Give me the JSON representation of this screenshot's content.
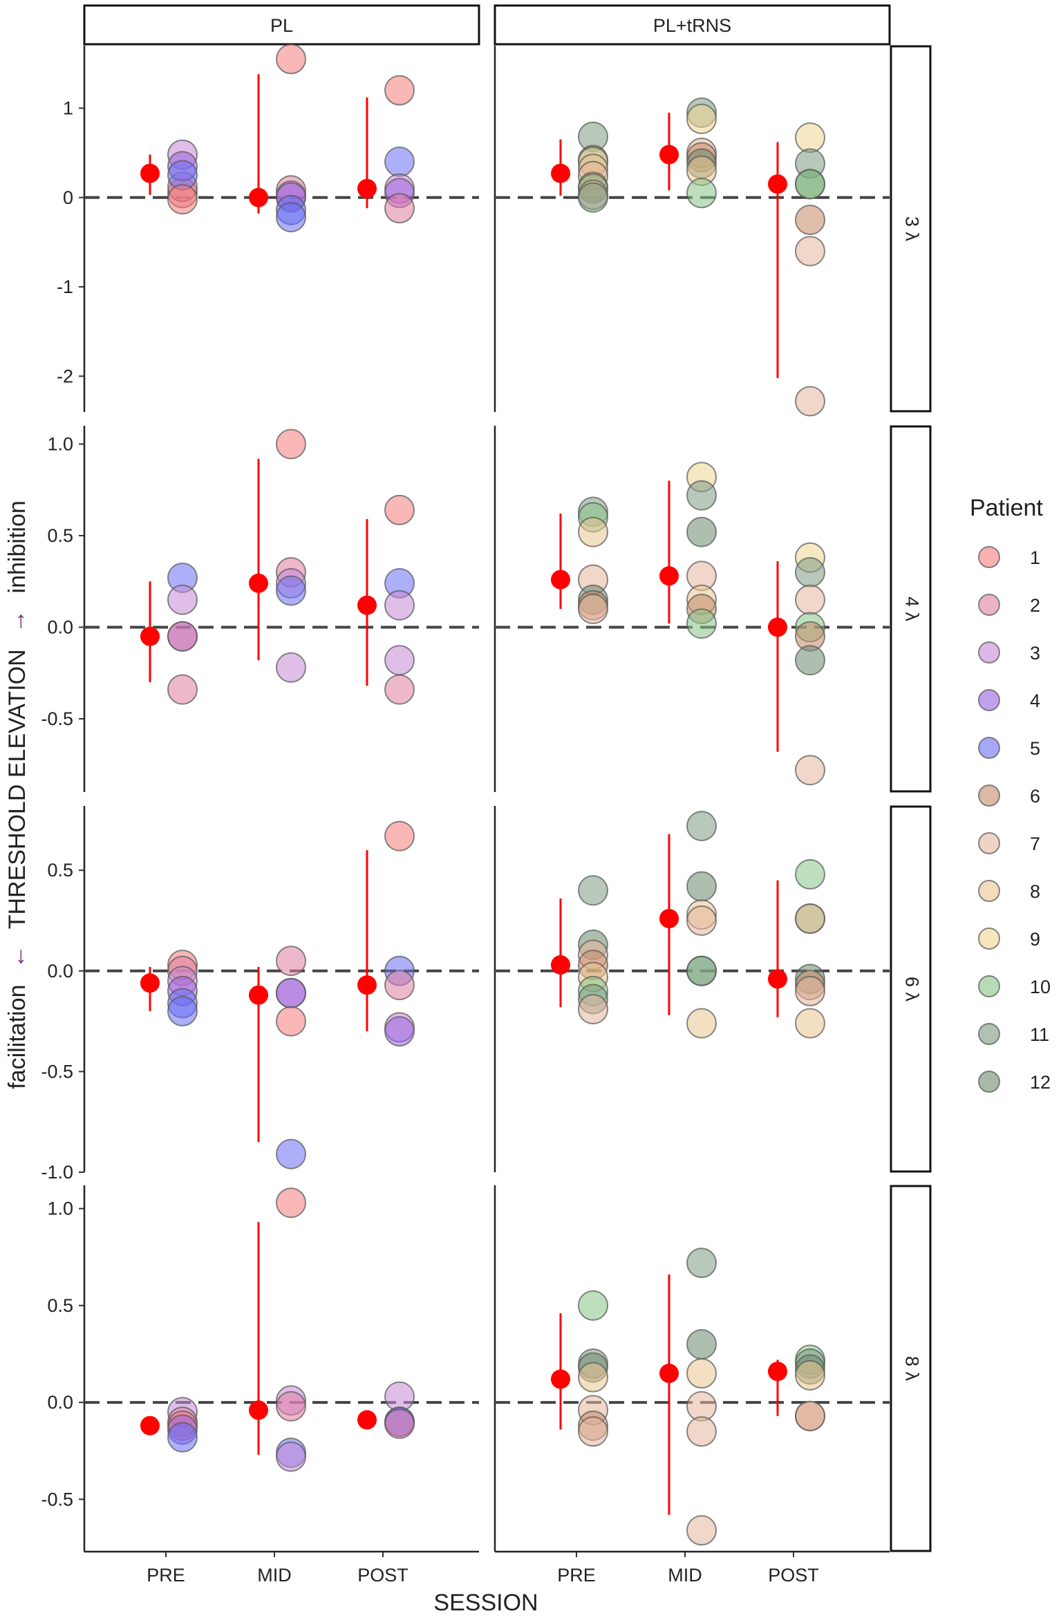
{
  "chart_data": {
    "type": "scatter",
    "xlabel": "SESSION",
    "ylabel_parts": {
      "facilitation": "facilitation",
      "left_arrow": "←",
      "threshold": "THRESHOLD ELEVATION",
      "right_arrow": "→",
      "inhibition": "inhibition"
    },
    "sessions": [
      "PRE",
      "MID",
      "POST"
    ],
    "columns": [
      "PL",
      "PL+tRNS"
    ],
    "legend": {
      "title": "Patient",
      "items": [
        {
          "label": "1",
          "color": "#f47c7c"
        },
        {
          "label": "2",
          "color": "#e07ea2"
        },
        {
          "label": "3",
          "color": "#c58ad6"
        },
        {
          "label": "4",
          "color": "#9a63e0"
        },
        {
          "label": "5",
          "color": "#6a6ff2"
        },
        {
          "label": "6",
          "color": "#c48a68"
        },
        {
          "label": "7",
          "color": "#e3b79c"
        },
        {
          "label": "8",
          "color": "#e9c490"
        },
        {
          "label": "9",
          "color": "#efd692"
        },
        {
          "label": "10",
          "color": "#86c486"
        },
        {
          "label": "11",
          "color": "#7d9a83"
        },
        {
          "label": "12",
          "color": "#6e8a6e"
        }
      ]
    },
    "mean_color": "#ff0000",
    "panels": [
      {
        "row_label": "3 λ",
        "ylim": [
          -2.4,
          1.7
        ],
        "ticks": [
          1,
          0,
          -1,
          -2
        ],
        "tick_labels": [
          "1",
          "0",
          "-1",
          "-2"
        ],
        "groups": {
          "PL": {
            "PRE": {
              "mean": 0.27,
              "lo": 0.03,
              "hi": 0.48,
              "points": [
                [
                  1,
                  0.05
                ],
                [
                  2,
                  0.12
                ],
                [
                  3,
                  0.48
                ],
                [
                  4,
                  0.35
                ],
                [
                  5,
                  0.25
                ],
                [
                  1,
                  -0.02
                ]
              ]
            },
            "MID": {
              "mean": 0.0,
              "lo": -0.18,
              "hi": 1.38,
              "points": [
                [
                  1,
                  1.55
                ],
                [
                  2,
                  0.08
                ],
                [
                  3,
                  0.02
                ],
                [
                  4,
                  0.0
                ],
                [
                  5,
                  -0.14
                ],
                [
                  5,
                  -0.22
                ]
              ]
            },
            "POST": {
              "mean": 0.1,
              "lo": -0.12,
              "hi": 1.12,
              "points": [
                [
                  1,
                  1.2
                ],
                [
                  5,
                  0.4
                ],
                [
                  3,
                  0.1
                ],
                [
                  4,
                  0.05
                ],
                [
                  2,
                  -0.12
                ]
              ]
            }
          },
          "PL+tRNS": {
            "PRE": {
              "mean": 0.27,
              "lo": 0.02,
              "hi": 0.65,
              "points": [
                [
                  11,
                  0.68
                ],
                [
                  12,
                  0.42
                ],
                [
                  9,
                  0.4
                ],
                [
                  8,
                  0.32
                ],
                [
                  7,
                  0.24
                ],
                [
                  6,
                  0.12
                ],
                [
                  10,
                  0.1
                ],
                [
                  7,
                  0.03
                ],
                [
                  11,
                  0.0
                ]
              ]
            },
            "MID": {
              "mean": 0.48,
              "lo": 0.08,
              "hi": 0.95,
              "points": [
                [
                  11,
                  0.95
                ],
                [
                  9,
                  0.88
                ],
                [
                  7,
                  0.5
                ],
                [
                  6,
                  0.45
                ],
                [
                  12,
                  0.38
                ],
                [
                  8,
                  0.3
                ],
                [
                  10,
                  0.05
                ]
              ]
            },
            "POST": {
              "mean": 0.15,
              "lo": -2.02,
              "hi": 0.62,
              "points": [
                [
                  9,
                  0.67
                ],
                [
                  11,
                  0.38
                ],
                [
                  12,
                  0.15
                ],
                [
                  10,
                  0.15
                ],
                [
                  6,
                  -0.25
                ],
                [
                  7,
                  -0.6
                ],
                [
                  7,
                  -2.28
                ]
              ]
            }
          }
        }
      },
      {
        "row_label": "4 λ",
        "ylim": [
          -0.9,
          1.1
        ],
        "ticks": [
          1.0,
          0.5,
          0.0,
          -0.5
        ],
        "tick_labels": [
          "1.0",
          "0.5",
          "0.0",
          "-0.5"
        ],
        "groups": {
          "PL": {
            "PRE": {
              "mean": -0.05,
              "lo": -0.3,
              "hi": 0.25,
              "points": [
                [
                  5,
                  0.27
                ],
                [
                  3,
                  0.15
                ],
                [
                  4,
                  -0.05
                ],
                [
                  2,
                  -0.05
                ],
                [
                  2,
                  -0.34
                ]
              ]
            },
            "MID": {
              "mean": 0.24,
              "lo": -0.18,
              "hi": 0.92,
              "points": [
                [
                  1,
                  1.0
                ],
                [
                  2,
                  0.3
                ],
                [
                  3,
                  0.24
                ],
                [
                  5,
                  0.2
                ],
                [
                  3,
                  -0.22
                ]
              ]
            },
            "POST": {
              "mean": 0.12,
              "lo": -0.32,
              "hi": 0.59,
              "points": [
                [
                  1,
                  0.64
                ],
                [
                  5,
                  0.24
                ],
                [
                  3,
                  0.12
                ],
                [
                  3,
                  -0.18
                ],
                [
                  2,
                  -0.34
                ]
              ]
            }
          },
          "PL+tRNS": {
            "PRE": {
              "mean": 0.26,
              "lo": 0.1,
              "hi": 0.62,
              "points": [
                [
                  11,
                  0.63
                ],
                [
                  10,
                  0.6
                ],
                [
                  8,
                  0.52
                ],
                [
                  7,
                  0.26
                ],
                [
                  12,
                  0.15
                ],
                [
                  6,
                  0.12
                ],
                [
                  7,
                  0.1
                ]
              ]
            },
            "MID": {
              "mean": 0.28,
              "lo": 0.02,
              "hi": 0.8,
              "points": [
                [
                  9,
                  0.82
                ],
                [
                  11,
                  0.72
                ],
                [
                  12,
                  0.52
                ],
                [
                  7,
                  0.28
                ],
                [
                  8,
                  0.15
                ],
                [
                  6,
                  0.1
                ],
                [
                  10,
                  0.02
                ]
              ]
            },
            "POST": {
              "mean": 0.0,
              "lo": -0.68,
              "hi": 0.36,
              "points": [
                [
                  9,
                  0.38
                ],
                [
                  11,
                  0.3
                ],
                [
                  7,
                  0.15
                ],
                [
                  10,
                  0.0
                ],
                [
                  6,
                  -0.05
                ],
                [
                  12,
                  -0.18
                ],
                [
                  7,
                  -0.78
                ]
              ]
            }
          }
        }
      },
      {
        "row_label": "6 λ",
        "ylim": [
          -1.0,
          0.82
        ],
        "ticks": [
          0.5,
          0.0,
          -0.5,
          -1.0
        ],
        "tick_labels": [
          "0.5",
          "0.0",
          "-0.5",
          "-1.0"
        ],
        "groups": {
          "PL": {
            "PRE": {
              "mean": -0.06,
              "lo": -0.2,
              "hi": 0.02,
              "points": [
                [
                  1,
                  0.03
                ],
                [
                  2,
                  0.0
                ],
                [
                  3,
                  -0.05
                ],
                [
                  4,
                  -0.1
                ],
                [
                  5,
                  -0.16
                ],
                [
                  5,
                  -0.2
                ]
              ]
            },
            "MID": {
              "mean": -0.12,
              "lo": -0.85,
              "hi": 0.02,
              "points": [
                [
                  2,
                  0.05
                ],
                [
                  3,
                  -0.11
                ],
                [
                  4,
                  -0.11
                ],
                [
                  1,
                  -0.25
                ],
                [
                  5,
                  -0.91
                ]
              ]
            },
            "POST": {
              "mean": -0.07,
              "lo": -0.3,
              "hi": 0.6,
              "points": [
                [
                  1,
                  0.67
                ],
                [
                  5,
                  0.0
                ],
                [
                  2,
                  -0.07
                ],
                [
                  3,
                  -0.28
                ],
                [
                  4,
                  -0.3
                ]
              ]
            }
          },
          "PL+tRNS": {
            "PRE": {
              "mean": 0.03,
              "lo": -0.18,
              "hi": 0.36,
              "points": [
                [
                  11,
                  0.4
                ],
                [
                  12,
                  0.13
                ],
                [
                  7,
                  0.08
                ],
                [
                  6,
                  0.03
                ],
                [
                  8,
                  -0.03
                ],
                [
                  10,
                  -0.1
                ],
                [
                  11,
                  -0.14
                ],
                [
                  7,
                  -0.19
                ]
              ]
            },
            "MID": {
              "mean": 0.26,
              "lo": -0.22,
              "hi": 0.68,
              "points": [
                [
                  11,
                  0.72
                ],
                [
                  12,
                  0.42
                ],
                [
                  8,
                  0.28
                ],
                [
                  7,
                  0.25
                ],
                [
                  10,
                  0.0
                ],
                [
                  11,
                  0.0
                ],
                [
                  8,
                  -0.26
                ]
              ]
            },
            "POST": {
              "mean": -0.04,
              "lo": -0.23,
              "hi": 0.45,
              "points": [
                [
                  10,
                  0.48
                ],
                [
                  11,
                  0.26
                ],
                [
                  8,
                  0.26
                ],
                [
                  12,
                  -0.04
                ],
                [
                  6,
                  -0.07
                ],
                [
                  7,
                  -0.1
                ],
                [
                  8,
                  -0.26
                ]
              ]
            }
          }
        }
      },
      {
        "row_label": "8 λ",
        "ylim": [
          -0.77,
          1.12
        ],
        "ticks": [
          1.0,
          0.5,
          0.0,
          -0.5
        ],
        "tick_labels": [
          "1.0",
          "0.5",
          "0.0",
          "-0.5"
        ],
        "groups": {
          "PL": {
            "PRE": {
              "mean": -0.12,
              "lo": -0.16,
              "hi": -0.08,
              "points": [
                [
                  3,
                  -0.05
                ],
                [
                  2,
                  -0.1
                ],
                [
                  1,
                  -0.12
                ],
                [
                  4,
                  -0.14
                ],
                [
                  5,
                  -0.18
                ]
              ]
            },
            "MID": {
              "mean": -0.04,
              "lo": -0.27,
              "hi": 0.93,
              "points": [
                [
                  1,
                  1.03
                ],
                [
                  3,
                  0.01
                ],
                [
                  2,
                  -0.02
                ],
                [
                  5,
                  -0.26
                ],
                [
                  3,
                  -0.28
                ]
              ]
            },
            "POST": {
              "mean": -0.09,
              "lo": -0.12,
              "hi": -0.05,
              "points": [
                [
                  3,
                  0.03
                ],
                [
                  4,
                  -0.1
                ],
                [
                  5,
                  -0.1
                ],
                [
                  2,
                  -0.11
                ]
              ]
            }
          },
          "PL+tRNS": {
            "PRE": {
              "mean": 0.12,
              "lo": -0.14,
              "hi": 0.46,
              "points": [
                [
                  10,
                  0.5
                ],
                [
                  11,
                  0.2
                ],
                [
                  12,
                  0.18
                ],
                [
                  8,
                  0.13
                ],
                [
                  7,
                  -0.04
                ],
                [
                  6,
                  -0.12
                ],
                [
                  7,
                  -0.15
                ]
              ]
            },
            "MID": {
              "mean": 0.15,
              "lo": -0.58,
              "hi": 0.66,
              "points": [
                [
                  11,
                  0.72
                ],
                [
                  12,
                  0.3
                ],
                [
                  8,
                  0.15
                ],
                [
                  7,
                  -0.02
                ],
                [
                  7,
                  -0.15
                ],
                [
                  7,
                  -0.66
                ]
              ]
            },
            "POST": {
              "mean": 0.16,
              "lo": -0.07,
              "hi": 0.22,
              "points": [
                [
                  10,
                  0.22
                ],
                [
                  11,
                  0.2
                ],
                [
                  12,
                  0.17
                ],
                [
                  8,
                  0.14
                ],
                [
                  6,
                  -0.07
                ],
                [
                  7,
                  -0.07
                ]
              ]
            }
          }
        }
      }
    ]
  }
}
